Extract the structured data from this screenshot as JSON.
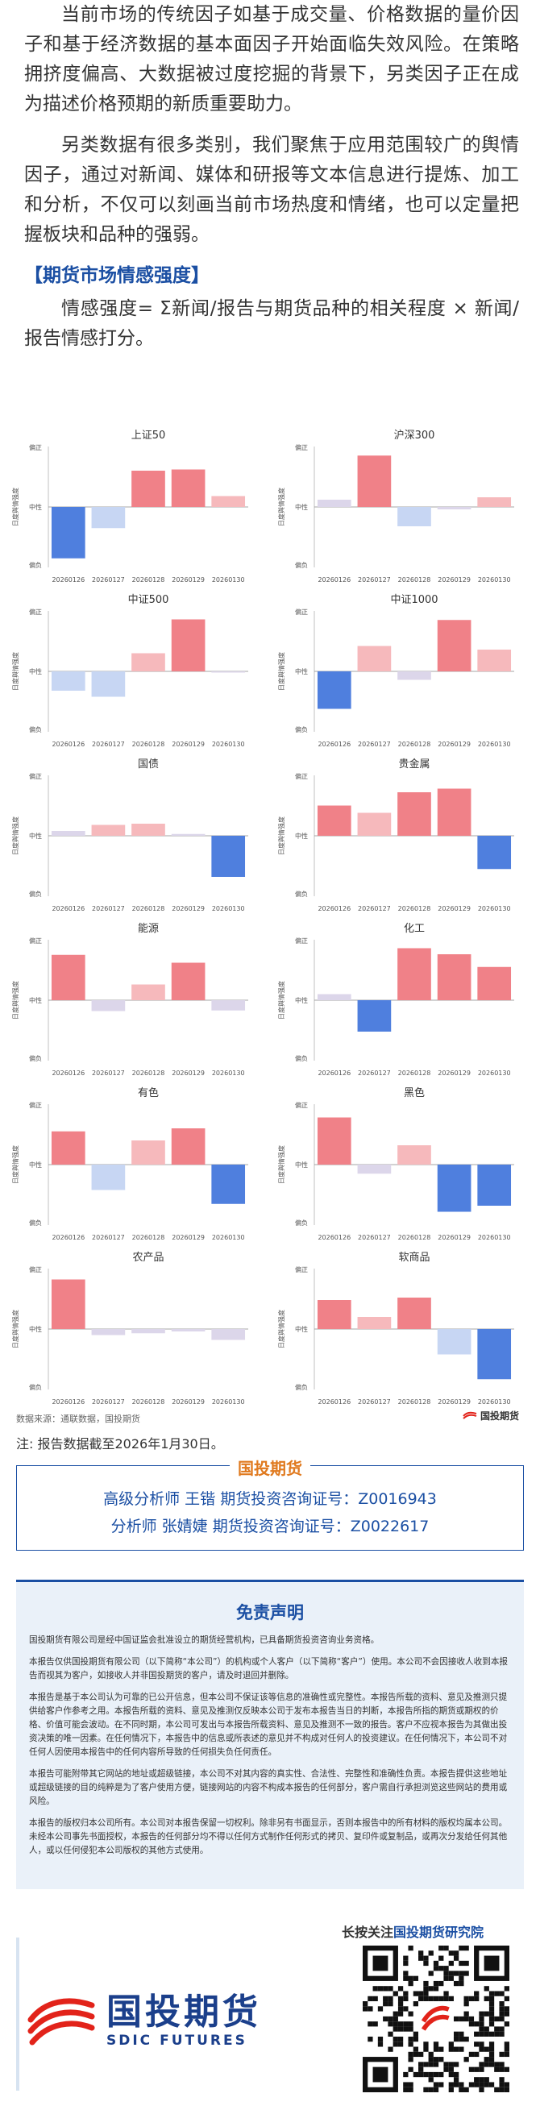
{
  "intro": {
    "para1": "当前市场的传统因子如基于成交量、价格数据的量价因子和基于经济数据的基本面因子开始面临失效风险。在策略拥挤度偏高、大数据被过度挖掘的背景下，另类因子正在成为描述价格预期的新质重要助力。",
    "para2": "另类数据有很多类别，我们聚焦于应用范围较广的舆情因子，通过对新闻、媒体和研报等文本信息进行提炼、加工和分析，不仅可以刻画当前市场热度和情绪，也可以定量把握板块和品种的强弱。",
    "section_title": "【期货市场情感强度】",
    "formula": "情感强度= Σ新闻/报告与期货品种的相关程度 × 新闻/报告情感打分。"
  },
  "chart_common": {
    "ylabel": "日度舆情强度",
    "y_top": "偏正",
    "y_mid": "中性",
    "y_bottom": "偏负",
    "dates": [
      "20260126",
      "20260127",
      "20260128",
      "20260129",
      "20260130"
    ]
  },
  "chart_data": [
    {
      "type": "bar",
      "title": "上证50",
      "categories": [
        "20260126",
        "20260127",
        "20260128",
        "20260129",
        "20260130"
      ],
      "values": [
        -0.85,
        -0.35,
        0.6,
        0.62,
        0.18
      ],
      "ylim": [
        -1,
        1
      ]
    },
    {
      "type": "bar",
      "title": "沪深300",
      "categories": [
        "20260126",
        "20260127",
        "20260128",
        "20260129",
        "20260130"
      ],
      "values": [
        0.12,
        0.85,
        -0.32,
        -0.04,
        0.16
      ],
      "ylim": [
        -1,
        1
      ]
    },
    {
      "type": "bar",
      "title": "中证500",
      "categories": [
        "20260126",
        "20260127",
        "20260128",
        "20260129",
        "20260130"
      ],
      "values": [
        -0.32,
        -0.42,
        0.3,
        0.86,
        -0.02
      ],
      "ylim": [
        -1,
        1
      ]
    },
    {
      "type": "bar",
      "title": "中证1000",
      "categories": [
        "20260126",
        "20260127",
        "20260128",
        "20260129",
        "20260130"
      ],
      "values": [
        -0.62,
        0.42,
        -0.14,
        0.85,
        0.36
      ],
      "ylim": [
        -1,
        1
      ]
    },
    {
      "type": "bar",
      "title": "国债",
      "categories": [
        "20260126",
        "20260127",
        "20260128",
        "20260129",
        "20260130"
      ],
      "values": [
        0.08,
        0.18,
        0.2,
        0.03,
        -0.68
      ],
      "ylim": [
        -1,
        1
      ]
    },
    {
      "type": "bar",
      "title": "贵金属",
      "categories": [
        "20260126",
        "20260127",
        "20260128",
        "20260129",
        "20260130"
      ],
      "values": [
        0.5,
        0.38,
        0.72,
        0.78,
        -0.55
      ],
      "ylim": [
        -1,
        1
      ]
    },
    {
      "type": "bar",
      "title": "能源",
      "categories": [
        "20260126",
        "20260127",
        "20260128",
        "20260129",
        "20260130"
      ],
      "values": [
        0.75,
        -0.18,
        0.26,
        0.62,
        -0.17
      ],
      "ylim": [
        -1,
        1
      ]
    },
    {
      "type": "bar",
      "title": "化工",
      "categories": [
        "20260126",
        "20260127",
        "20260128",
        "20260129",
        "20260130"
      ],
      "values": [
        0.1,
        -0.52,
        0.86,
        0.76,
        0.55
      ],
      "ylim": [
        -1,
        1
      ]
    },
    {
      "type": "bar",
      "title": "有色",
      "categories": [
        "20260126",
        "20260127",
        "20260128",
        "20260129",
        "20260130"
      ],
      "values": [
        0.55,
        -0.42,
        0.4,
        0.6,
        -0.65
      ],
      "ylim": [
        -1,
        1
      ]
    },
    {
      "type": "bar",
      "title": "黑色",
      "categories": [
        "20260126",
        "20260127",
        "20260128",
        "20260129",
        "20260130"
      ],
      "values": [
        0.78,
        -0.15,
        0.32,
        -0.78,
        -0.68
      ],
      "ylim": [
        -1,
        1
      ]
    },
    {
      "type": "bar",
      "title": "农产品",
      "categories": [
        "20260126",
        "20260127",
        "20260128",
        "20260129",
        "20260130"
      ],
      "values": [
        0.82,
        -0.1,
        -0.07,
        -0.04,
        -0.18
      ],
      "ylim": [
        -1,
        1
      ]
    },
    {
      "type": "bar",
      "title": "软商品",
      "categories": [
        "20260126",
        "20260127",
        "20260128",
        "20260129",
        "20260130"
      ],
      "values": [
        0.48,
        0.2,
        0.52,
        -0.42,
        -0.83
      ],
      "ylim": [
        -1,
        1
      ]
    }
  ],
  "colors": {
    "strong_pos": "#f08188",
    "weak_pos": "#f6b9bc",
    "strong_neg": "#4f7fde",
    "weak_neg": "#c7d6f3",
    "faint": "#dcd6ea",
    "brand_blue": "#1b4fa3",
    "brand_orange": "#e07a1f",
    "logo_red": "#e2231a"
  },
  "source_text": "数据来源：通联数据，国投期货",
  "brand_small": "国投期货",
  "note": "注: 报告数据截至2026年1月30日。",
  "analyst_box": {
    "tag": "国投期货",
    "line1": "高级分析师  王锴  期货投资咨询证号：Z0016943",
    "line2": "分析师  张婧婕  期货投资咨询证号：Z0022617"
  },
  "disclaimer": {
    "title": "免责声明",
    "p1": "国投期货有限公司是经中国证监会批准设立的期货经营机构，已具备期货投资咨询业务资格。",
    "p2": "本报告仅供国投期货有限公司（以下简称“本公司”）的机构或个人客户（以下简称“客户”）使用。本公司不会因接收人收到本报告而视其为客户，如接收人并非国投期货的客户，请及时退回并删除。",
    "p3": "本报告是基于本公司认为可靠的已公开信息，但本公司不保证该等信息的准确性或完整性。本报告所载的资料、意见及推测只提供给客户作参考之用。本报告所载的资料、意见及推测仅反映本公司于发布本报告当日的判断，本报告所指的期货或期权的价格、价值可能会波动。在不同时期，本公司可发出与本报告所载资料、意见及推测不一致的报告。客户不应视本报告为其做出投资决策的唯一因素。在任何情况下，本报告中的信息或所表述的意见并不构成对任何人的投资建议。在任何情况下，本公司不对任何人因使用本报告中的任何内容所导致的任何损失负任何责任。",
    "p4": "本报告可能附带其它网站的地址或超级链接，本公司不对其内容的真实性、合法性、完整性和准确性负责。本报告提供这些地址或超级链接的目的纯粹是为了客户使用方便，链接网站的内容不构成本报告的任何部分，客户需自行承担浏览这些网站的费用或风险。",
    "p5": "本报告的版权归本公司所有。本公司对本报告保留一切权利。除非另有书面显示，否则本报告中的所有材料的版权均属本公司。未经本公司事先书面授权，本报告的任何部分均不得以任何方式制作任何形式的拷贝、复印件或复制品，或再次分发给任何其他人，或以任何侵犯本公司版权的其他方式使用。"
  },
  "footer": {
    "follow_prefix": "长按关注",
    "follow_highlight": "国投期货研究院",
    "logo_cn": "国投期货",
    "logo_en": "SDIC FUTURES"
  }
}
